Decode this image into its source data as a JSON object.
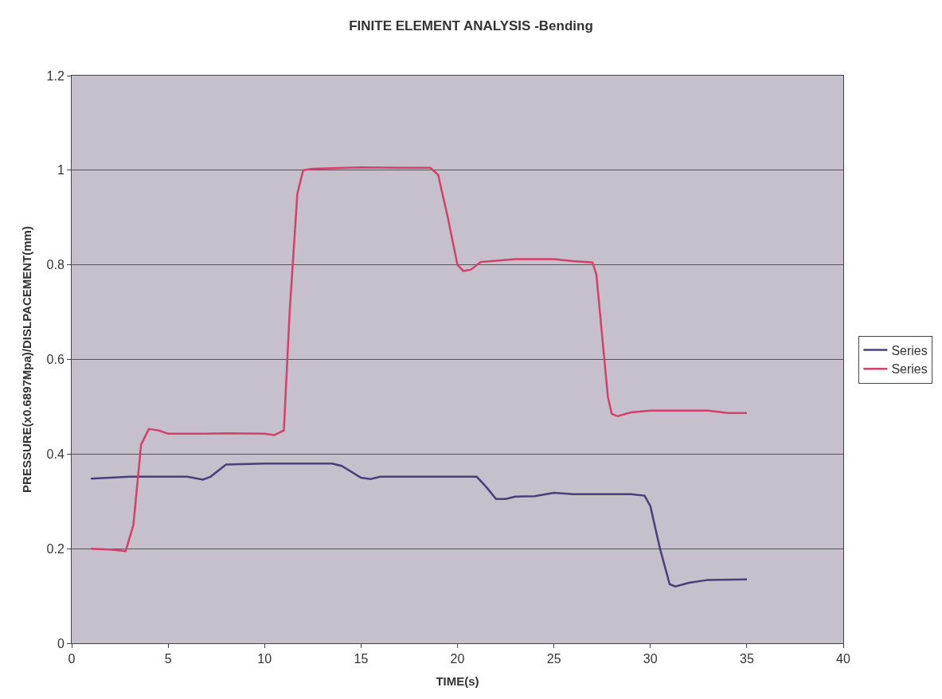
{
  "chart_data": {
    "type": "line",
    "title": "FINITE ELEMENT ANALYSIS -Bending",
    "xlabel": "TIME(s)",
    "ylabel": "PRESSURE(x0.6897Mpa)/DISLPACEMENT(mm)",
    "xlim": [
      0,
      40
    ],
    "xticks": [
      0,
      5,
      10,
      15,
      20,
      25,
      30,
      35,
      40
    ],
    "ylim": [
      0,
      1.2
    ],
    "yticks": [
      0,
      0.2,
      0.4,
      0.6,
      0.8,
      1,
      1.2
    ],
    "grid": "y",
    "legend": "right",
    "marker": "none",
    "line_style": "solid",
    "series": [
      {
        "name": "Series",
        "color": "#4b3f7a",
        "x": [
          1,
          3,
          6,
          6.8,
          7.2,
          8,
          10,
          13.5,
          14,
          15,
          15.5,
          16,
          20,
          21,
          21.5,
          22,
          22.5,
          23,
          24,
          25,
          26,
          29,
          29.7,
          30,
          30.5,
          31,
          31.3,
          32,
          33,
          35
        ],
        "values": [
          0.348,
          0.352,
          0.352,
          0.346,
          0.352,
          0.378,
          0.38,
          0.38,
          0.375,
          0.35,
          0.347,
          0.352,
          0.352,
          0.352,
          0.33,
          0.305,
          0.305,
          0.31,
          0.311,
          0.318,
          0.315,
          0.315,
          0.312,
          0.29,
          0.2,
          0.125,
          0.12,
          0.128,
          0.134,
          0.135
        ]
      },
      {
        "name": "Series",
        "color": "#d4406a",
        "x": [
          1,
          2,
          2.8,
          3.2,
          3.6,
          4,
          4.5,
          5,
          7,
          8,
          10,
          10.5,
          11,
          11.3,
          11.7,
          12,
          12.5,
          15,
          17,
          18.6,
          19,
          19.5,
          20,
          20.3,
          20.7,
          21.2,
          23,
          25,
          26,
          27,
          27.2,
          27.5,
          27.8,
          28,
          28.3,
          29,
          30,
          33,
          34,
          35
        ],
        "values": [
          0.2,
          0.198,
          0.195,
          0.25,
          0.42,
          0.453,
          0.45,
          0.443,
          0.443,
          0.444,
          0.443,
          0.44,
          0.45,
          0.7,
          0.95,
          1.0,
          1.003,
          1.006,
          1.005,
          1.005,
          0.99,
          0.9,
          0.8,
          0.787,
          0.79,
          0.806,
          0.812,
          0.812,
          0.808,
          0.805,
          0.78,
          0.65,
          0.52,
          0.485,
          0.48,
          0.488,
          0.492,
          0.492,
          0.487,
          0.487
        ]
      }
    ]
  }
}
